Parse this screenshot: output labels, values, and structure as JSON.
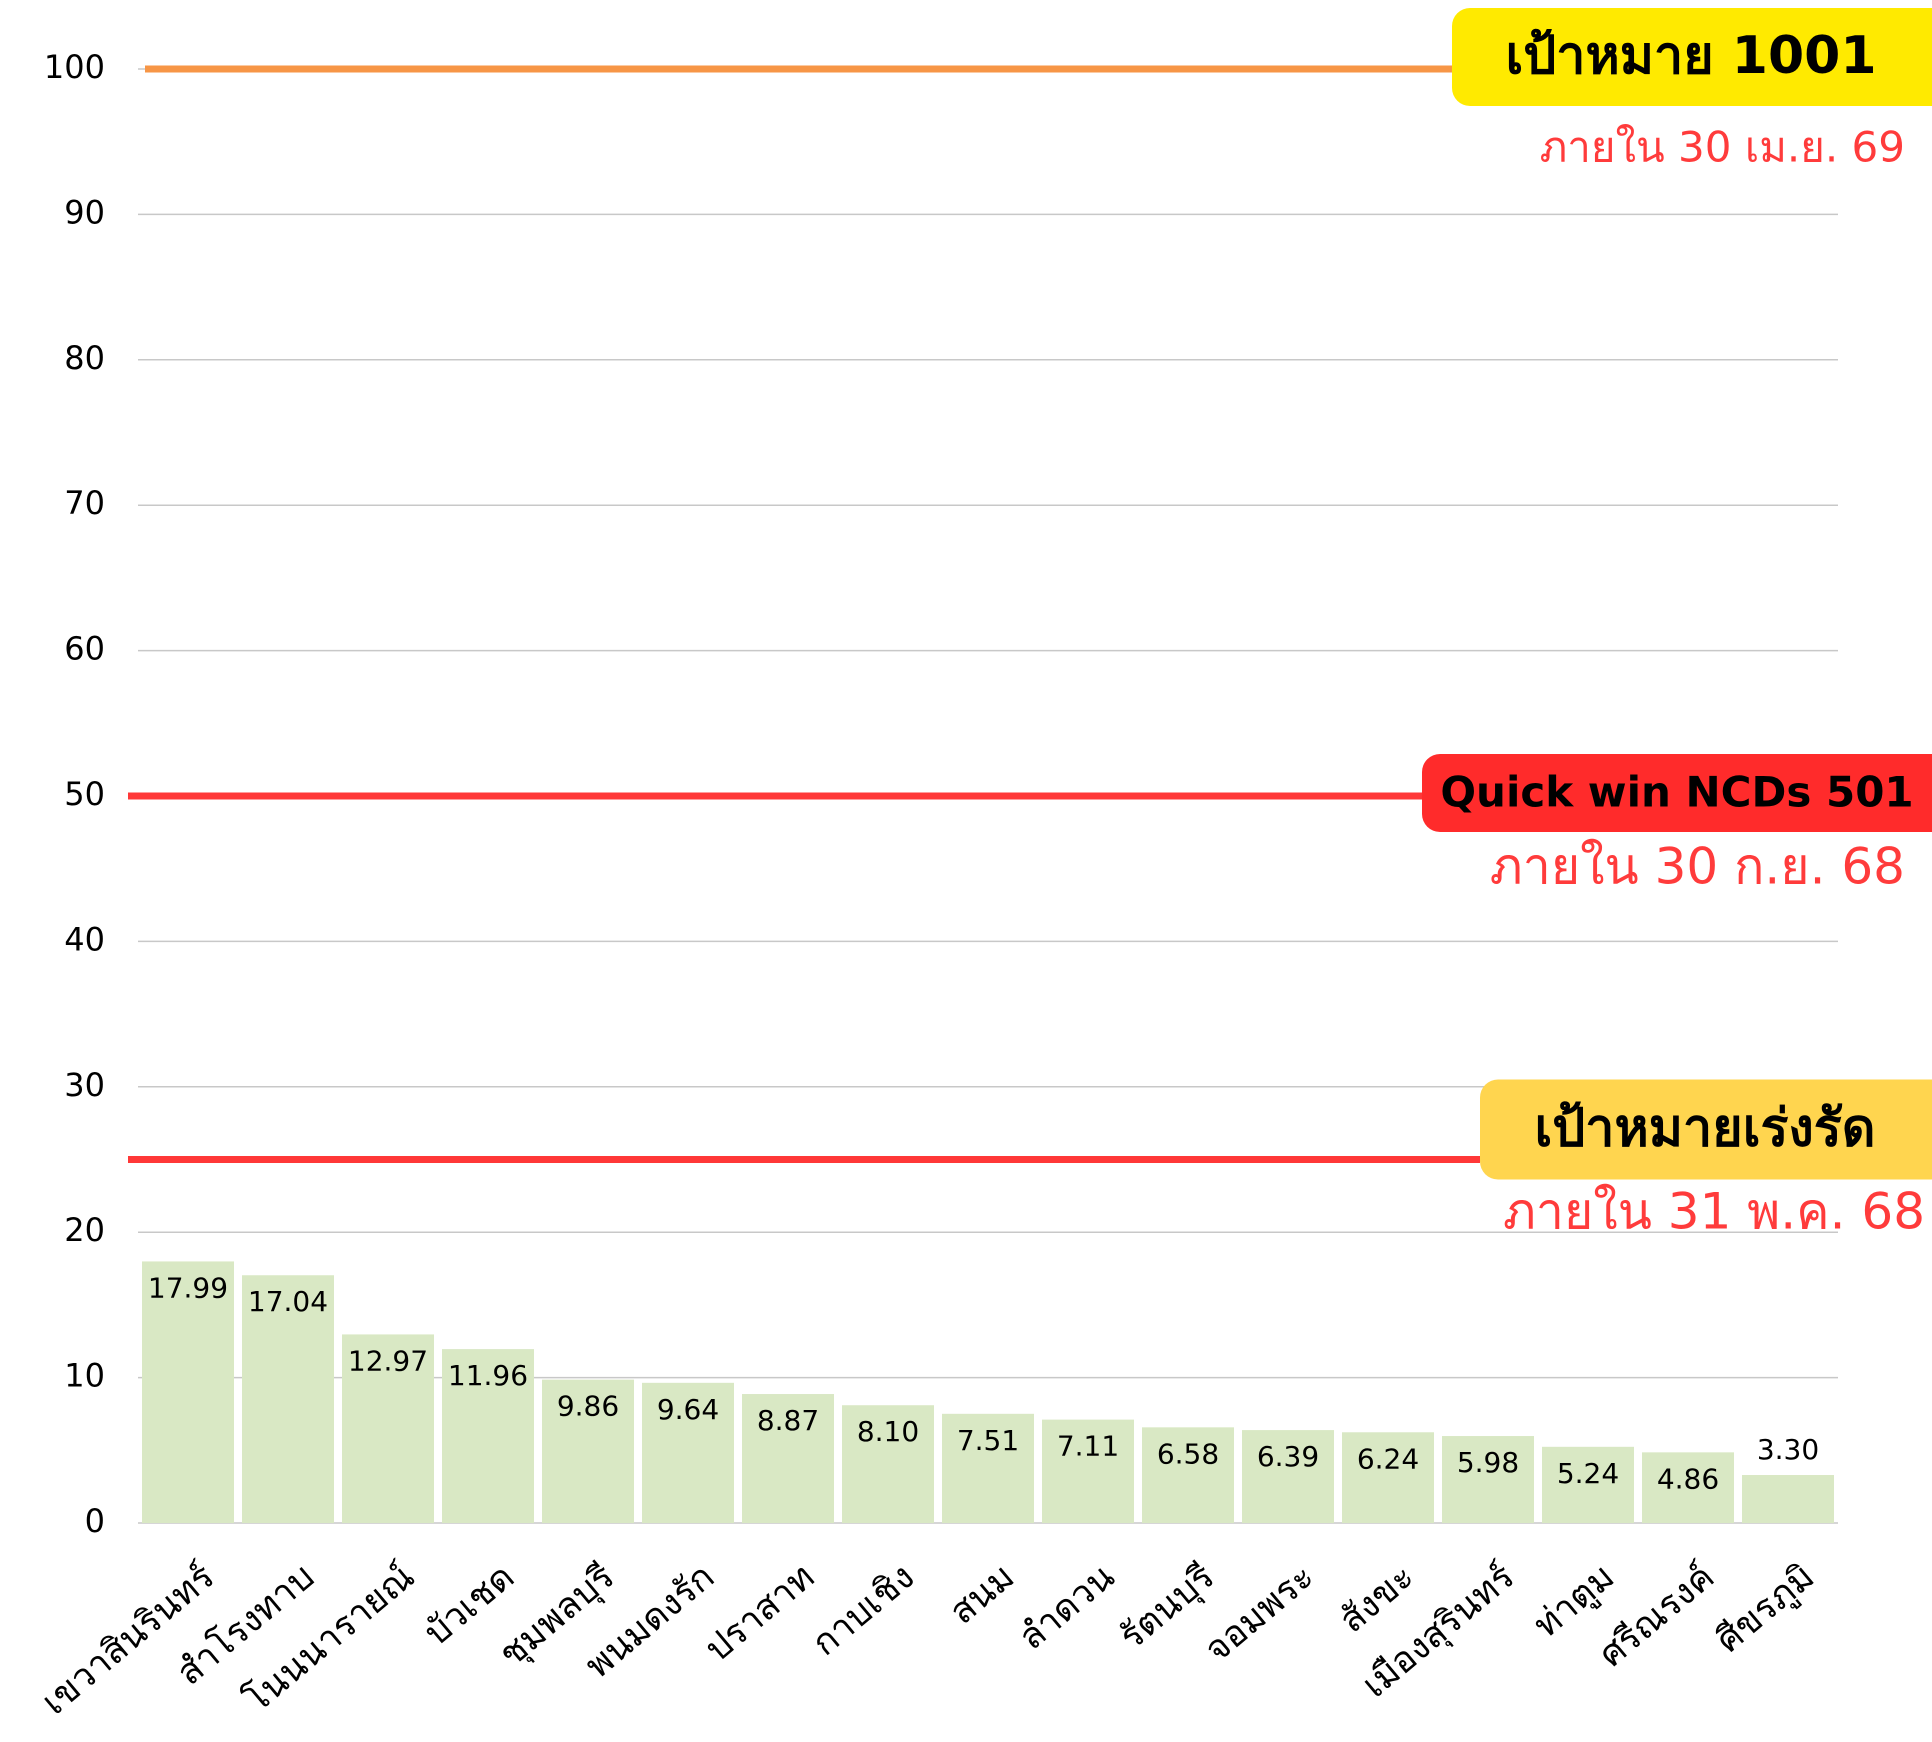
{
  "chart_data": {
    "type": "bar",
    "categories": [
      "เขวาสินรินทร์",
      "สำโรงทาบ",
      "โนนนารายณ์",
      "บัวเชด",
      "ชุมพลบุรี",
      "พนมดงรัก",
      "ปราสาท",
      "กาบเชิง",
      "สนม",
      "ลำดวน",
      "รัตนบุรี",
      "จอมพระ",
      "สังขะ",
      "เมืองสุรินทร์",
      "ท่าตูม",
      "ศรีณรงค์",
      "ศีขรภูมิ"
    ],
    "values": [
      17.99,
      17.04,
      12.97,
      11.96,
      9.86,
      9.64,
      8.87,
      8.1,
      7.51,
      7.11,
      6.58,
      6.39,
      6.24,
      5.98,
      5.24,
      4.86,
      3.3
    ],
    "value_labels": [
      "17.99",
      "17.04",
      "12.97",
      "11.96",
      "9.86",
      "9.64",
      "8.87",
      "8.10",
      "7.51",
      "7.11",
      "6.58",
      "6.39",
      "6.24",
      "5.98",
      "5.24",
      "4.86",
      "3.30"
    ],
    "color": "#d9e8c4",
    "ylim": [
      0,
      100
    ],
    "yticks": [
      0,
      10,
      20,
      30,
      40,
      50,
      60,
      70,
      80,
      90,
      100
    ],
    "grid": true,
    "reference_lines": [
      {
        "value": 100,
        "label": "เป้าหมาย 1001",
        "note": "ภายใน 30 เม.ย. 69",
        "color": "#f79646",
        "box_color": "#ffea00"
      },
      {
        "value": 50,
        "label": "Quick win NCDs 501",
        "note": "ภายใน 30 ก.ย. 68",
        "color": "#ff3838",
        "box_color": "#ff2b2b"
      },
      {
        "value": 25,
        "label": "เป้าหมายเร่งรัด",
        "note": "ภายใน 31 พ.ค. 68",
        "color": "#ff3838",
        "box_color": "#ffd54f"
      }
    ]
  }
}
